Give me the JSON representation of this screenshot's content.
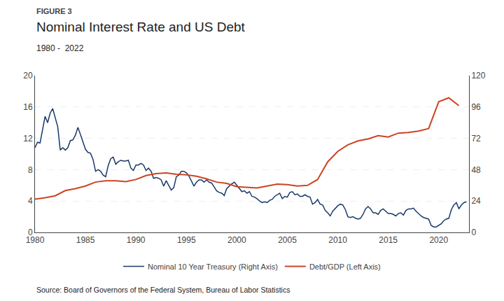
{
  "chart_data": {
    "type": "line",
    "title": "Nominal Interest Rate and US Debt",
    "subtitle": "1980 -  2022",
    "annotations": [
      "FIGURE 3",
      "Source: Board of Governors of the Federal System, Bureau of Labor Statistics"
    ],
    "xlim": [
      1980,
      2023
    ],
    "xticks": [
      1980,
      1985,
      1990,
      1995,
      2000,
      2005,
      2010,
      2015,
      2020
    ],
    "ylim": [
      0,
      20
    ],
    "yticks": [
      0,
      4,
      8,
      12,
      16,
      20
    ],
    "y2lim": [
      0,
      120
    ],
    "y2ticks": [
      0,
      24,
      48,
      72,
      96,
      120
    ],
    "grid": true,
    "legend": "bottom",
    "series": [
      {
        "name": "Nominal 10 Year Treasury (Right Axis)",
        "color": "#1b3a6b",
        "axis": "y",
        "x": [
          1980.0,
          1980.25,
          1980.5,
          1980.75,
          1981.0,
          1981.25,
          1981.5,
          1981.75,
          1982.0,
          1982.25,
          1982.5,
          1982.75,
          1983.0,
          1983.25,
          1983.5,
          1983.75,
          1984.0,
          1984.25,
          1984.5,
          1984.75,
          1985.0,
          1985.25,
          1985.5,
          1985.75,
          1986.0,
          1986.25,
          1986.5,
          1986.75,
          1987.0,
          1987.25,
          1987.5,
          1987.75,
          1988.0,
          1988.25,
          1988.5,
          1988.75,
          1989.0,
          1989.25,
          1989.5,
          1989.75,
          1990.0,
          1990.25,
          1990.5,
          1990.75,
          1991.0,
          1991.25,
          1991.5,
          1991.75,
          1992.0,
          1992.25,
          1992.5,
          1992.75,
          1993.0,
          1993.25,
          1993.5,
          1993.75,
          1994.0,
          1994.25,
          1994.5,
          1994.75,
          1995.0,
          1995.25,
          1995.5,
          1995.75,
          1996.0,
          1996.25,
          1996.5,
          1996.75,
          1997.0,
          1997.25,
          1997.5,
          1997.75,
          1998.0,
          1998.25,
          1998.5,
          1998.75,
          1999.0,
          1999.25,
          1999.5,
          1999.75,
          2000.0,
          2000.25,
          2000.5,
          2000.75,
          2001.0,
          2001.25,
          2001.5,
          2001.75,
          2002.0,
          2002.25,
          2002.5,
          2002.75,
          2003.0,
          2003.25,
          2003.5,
          2003.75,
          2004.0,
          2004.25,
          2004.5,
          2004.75,
          2005.0,
          2005.25,
          2005.5,
          2005.75,
          2006.0,
          2006.25,
          2006.5,
          2006.75,
          2007.0,
          2007.25,
          2007.5,
          2007.75,
          2008.0,
          2008.25,
          2008.5,
          2008.75,
          2009.0,
          2009.25,
          2009.5,
          2009.75,
          2010.0,
          2010.25,
          2010.5,
          2010.75,
          2011.0,
          2011.25,
          2011.5,
          2011.75,
          2012.0,
          2012.25,
          2012.5,
          2012.75,
          2013.0,
          2013.25,
          2013.5,
          2013.75,
          2014.0,
          2014.25,
          2014.5,
          2014.75,
          2015.0,
          2015.25,
          2015.5,
          2015.75,
          2016.0,
          2016.25,
          2016.5,
          2016.75,
          2017.0,
          2017.25,
          2017.5,
          2017.75,
          2018.0,
          2018.25,
          2018.5,
          2018.75,
          2019.0,
          2019.25,
          2019.5,
          2019.75,
          2020.0,
          2020.25,
          2020.5,
          2020.75,
          2021.0,
          2021.25,
          2021.5,
          2021.75,
          2022.0,
          2022.25,
          2022.5,
          2022.75
        ],
        "values": [
          10.8,
          11.5,
          11.4,
          13.2,
          14.8,
          14.0,
          15.2,
          15.8,
          14.6,
          13.5,
          10.5,
          10.8,
          10.5,
          10.8,
          11.7,
          11.8,
          12.4,
          13.4,
          12.5,
          11.6,
          10.6,
          10.2,
          10.1,
          9.3,
          7.8,
          8.0,
          7.8,
          7.3,
          7.1,
          8.5,
          9.4,
          9.6,
          8.7,
          9.0,
          9.2,
          9.1,
          9.1,
          9.2,
          8.2,
          7.9,
          8.6,
          8.6,
          8.8,
          8.6,
          7.9,
          8.2,
          7.8,
          6.9,
          7.0,
          6.9,
          6.7,
          5.9,
          6.6,
          6.0,
          5.4,
          5.7,
          7.1,
          7.3,
          7.8,
          7.8,
          7.6,
          7.2,
          6.5,
          5.9,
          6.4,
          6.7,
          6.7,
          6.4,
          6.7,
          6.4,
          6.3,
          5.8,
          5.3,
          5.1,
          5.0,
          4.7,
          5.6,
          5.9,
          6.2,
          6.4,
          6.0,
          5.7,
          5.2,
          5.3,
          5.0,
          5.2,
          4.6,
          4.5,
          4.3,
          4.0,
          3.8,
          3.9,
          3.8,
          4.1,
          4.2,
          4.6,
          4.8,
          5.0,
          4.3,
          4.6,
          4.5,
          5.1,
          5.2,
          4.8,
          4.9,
          4.6,
          4.6,
          4.8,
          4.6,
          4.5,
          3.6,
          3.8,
          4.2,
          3.6,
          3.5,
          2.8,
          2.5,
          2.1,
          2.7,
          3.1,
          3.4,
          3.6,
          3.5,
          2.9,
          2.0,
          1.9,
          2.0,
          1.8,
          1.7,
          1.8,
          2.3,
          3.0,
          3.3,
          3.0,
          2.5,
          2.5,
          2.3,
          2.8,
          3.0,
          2.7,
          2.4,
          2.4,
          2.3,
          2.1,
          2.4,
          2.5,
          2.2,
          2.8,
          3.0,
          3.0,
          3.1,
          2.7,
          2.4,
          2.1,
          1.9,
          1.8,
          1.7,
          0.9,
          0.7,
          0.7,
          0.9,
          1.1,
          1.5,
          1.7,
          1.8,
          2.9,
          3.5,
          3.8,
          3.0,
          3.5,
          3.8,
          3.9
        ]
      },
      {
        "name": "Debt/GDP (Left Axis)",
        "color": "#cc4422",
        "axis": "y2",
        "x": [
          1980,
          1981,
          1982,
          1983,
          1984,
          1985,
          1986,
          1987,
          1988,
          1989,
          1990,
          1991,
          1992,
          1993,
          1994,
          1995,
          1996,
          1997,
          1998,
          1999,
          2000,
          2001,
          2002,
          2003,
          2004,
          2005,
          2006,
          2007,
          2008,
          2009,
          2010,
          2011,
          2012,
          2013,
          2014,
          2015,
          2016,
          2017,
          2018,
          2019,
          2020,
          2021,
          2022
        ],
        "values": [
          25.5,
          26.5,
          28.0,
          32.0,
          33.5,
          35.5,
          38.5,
          39.5,
          39.5,
          38.8,
          40.5,
          43.5,
          45.0,
          45.5,
          44.5,
          44.0,
          43.0,
          41.0,
          38.5,
          37.5,
          35.0,
          34.5,
          34.0,
          35.5,
          37.0,
          36.5,
          35.5,
          36.0,
          40.5,
          54.0,
          62.0,
          67.0,
          70.0,
          71.5,
          74.0,
          73.0,
          76.0,
          76.5,
          77.5,
          79.5,
          100.0,
          103.0,
          97.0
        ]
      }
    ]
  }
}
